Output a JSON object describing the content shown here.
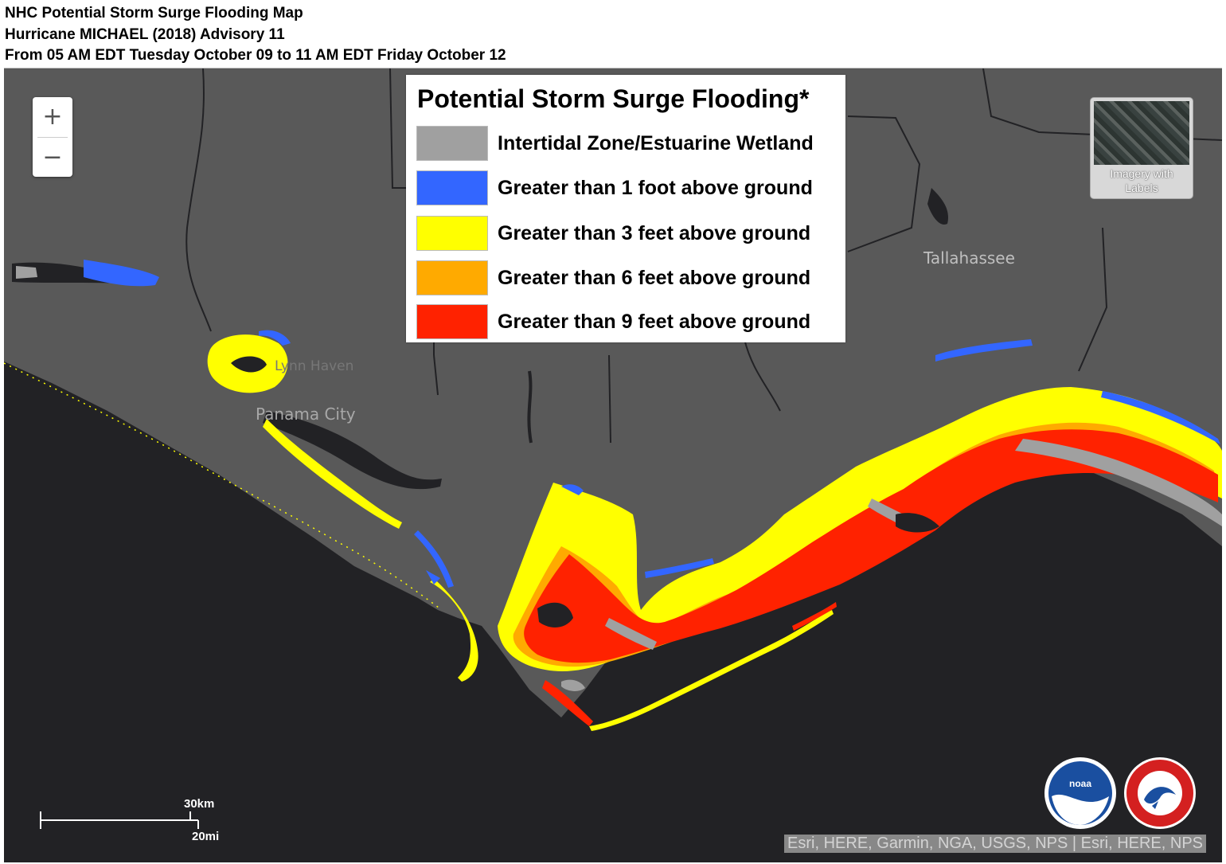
{
  "header": {
    "line1": "NHC Potential Storm Surge Flooding Map",
    "line2": "Hurricane MICHAEL (2018) Advisory 11",
    "line3": "From 05 AM EDT Tuesday October 09 to 11 AM EDT Friday October 12"
  },
  "zoom": {
    "in": "+",
    "out": "−"
  },
  "legend": {
    "title": "Potential Storm Surge Flooding*",
    "items": [
      {
        "label": "Intertidal Zone/Estuarine Wetland",
        "color": "#a0a0a0"
      },
      {
        "label": "Greater than 1 foot above ground",
        "color": "#3366ff"
      },
      {
        "label": "Greater than 3 feet above ground",
        "color": "#ffff00"
      },
      {
        "label": "Greater than 6 feet above ground",
        "color": "#ffaa00"
      },
      {
        "label": "Greater than 9 feet above ground",
        "color": "#ff2200"
      }
    ]
  },
  "basemap_toggle": {
    "label_line1": "Imagery with",
    "label_line2": "Labels"
  },
  "cities": {
    "tallahassee": "Tallahassee",
    "lynn_haven": "Lynn Haven",
    "panama_city": "Panama City"
  },
  "scale": {
    "km": "30km",
    "mi": "20mi"
  },
  "logos": {
    "noaa": "noaa",
    "nws": "NATIONAL WEATHER SERVICE"
  },
  "attribution": "Esri, HERE, Garmin, NGA, USGS, NPS | Esri, HERE, NPS",
  "colors": {
    "land": "#595959",
    "water": "#222225",
    "boundary": "#222225"
  }
}
